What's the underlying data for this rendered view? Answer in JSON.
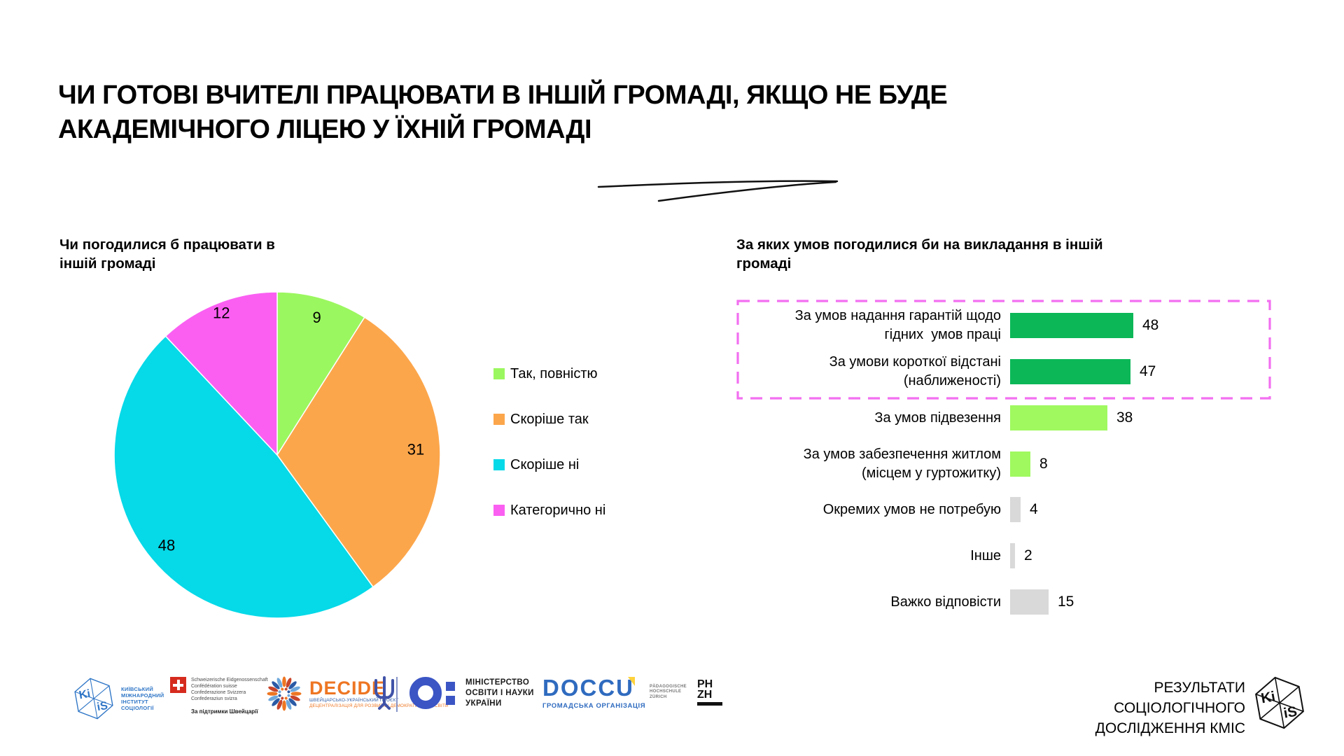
{
  "title": {
    "line1": "ЧИ ГОТОВІ ВЧИТЕЛІ ПРАЦЮВАТИ В ІНШІЙ ГРОМАДІ, ЯКЩО НЕ БУДЕ",
    "line2": "АКАДЕМІЧНОГО ЛІЦЕЮ У ЇХНІЙ ГРОМАДІ"
  },
  "chart_data": [
    {
      "type": "pie",
      "title": "Чи погодилися б працювати в іншій громаді",
      "labels": [
        "Так, повністю",
        "Скоріше так",
        "Скоріше ні",
        "Категорично ні"
      ],
      "values": [
        9,
        31,
        48,
        12
      ],
      "colors": [
        "#9BF75F",
        "#FCA64B",
        "#06D9E8",
        "#FA5FF2"
      ],
      "start_angle_deg": 0,
      "direction": "clockwise",
      "legend_position": "right",
      "data_label_color": "#000000"
    },
    {
      "type": "bar",
      "orientation": "horizontal",
      "title": "За яких умов погодилися би на викладання в іншій громаді",
      "categories": [
        "За умов надання гарантій щодо гідних  умов праці",
        "За умови короткої відстані (наближеності)",
        "За умов підвезення",
        "За умов забезпечення житлом (місцем у гуртожитку)",
        "Окремих умов не потребую",
        "Інше",
        "Важко відповісти"
      ],
      "category_lines": [
        [
          "За умов надання гарантій щодо",
          "гідних  умов праці"
        ],
        [
          "За умови короткої відстані",
          "(наближеності)"
        ],
        [
          "За умов підвезення"
        ],
        [
          "За умов забезпечення житлом",
          "(місцем у гуртожитку)"
        ],
        [
          "Окремих умов не потребую"
        ],
        [
          "Інше"
        ],
        [
          "Важко відповісти"
        ]
      ],
      "values": [
        48,
        47,
        38,
        8,
        4,
        2,
        15
      ],
      "bar_colors": [
        "#0BB757",
        "#0BB757",
        "#9FF95F",
        "#9FF95F",
        "#D9D9D9",
        "#D9D9D9",
        "#D9D9D9"
      ],
      "xlim": [
        0,
        52
      ],
      "grid": false,
      "value_labels": true,
      "highlight": {
        "rows": [
          0,
          1
        ],
        "style": "dashed-box",
        "color": "#F26FF0"
      }
    }
  ],
  "footer": {
    "kiis": {
      "cube_top": "Ki",
      "cube_bottom": "iS",
      "text_lines": [
        "КИЇВСЬКИЙ",
        "МІЖНАРОДНИЙ",
        "ІНСТИТУТ",
        "СОЦІОЛОГІЇ"
      ]
    },
    "swiss": {
      "text_lines": [
        "Schweizerische Eidgenossenschaft",
        "Confédération suisse",
        "Confederazione Svizzera",
        "Confederaziun svizra"
      ],
      "support": "За підтримки Швейцарії"
    },
    "decide": {
      "name": "DECIDE",
      "sub_line1": "ШВЕЙЦАРСЬКО-УКРАЇНСЬКИЙ ПРОЄКТ",
      "sub_line2": "ДЕЦЕНТРАЛІЗАЦІЯ ДЛЯ РОЗВИТКУ ДЕМОКРАТИЧНОЇ ОСВІТИ"
    },
    "ministry": {
      "text_lines": [
        "МІНІСТЕРСТВО",
        "ОСВІТИ І НАУКИ",
        "УКРАЇНИ"
      ]
    },
    "doccu": {
      "name": "DOCCU",
      "sub": "ГРОМАДСЬКА ОРГАНІЗАЦІЯ"
    },
    "phzh": {
      "text_lines": [
        "PÄDAGOGISCHE",
        "HOCHSCHULE",
        "ZÜRICH"
      ],
      "ph": "PH",
      "zh": "ZH"
    }
  },
  "source": {
    "lines": [
      "РЕЗУЛЬТАТИ",
      "СОЦІОЛОГІЧНОГО",
      "ДОСЛІДЖЕННЯ КМІС"
    ],
    "cube_top": "Ki",
    "cube_bottom": "iS"
  }
}
